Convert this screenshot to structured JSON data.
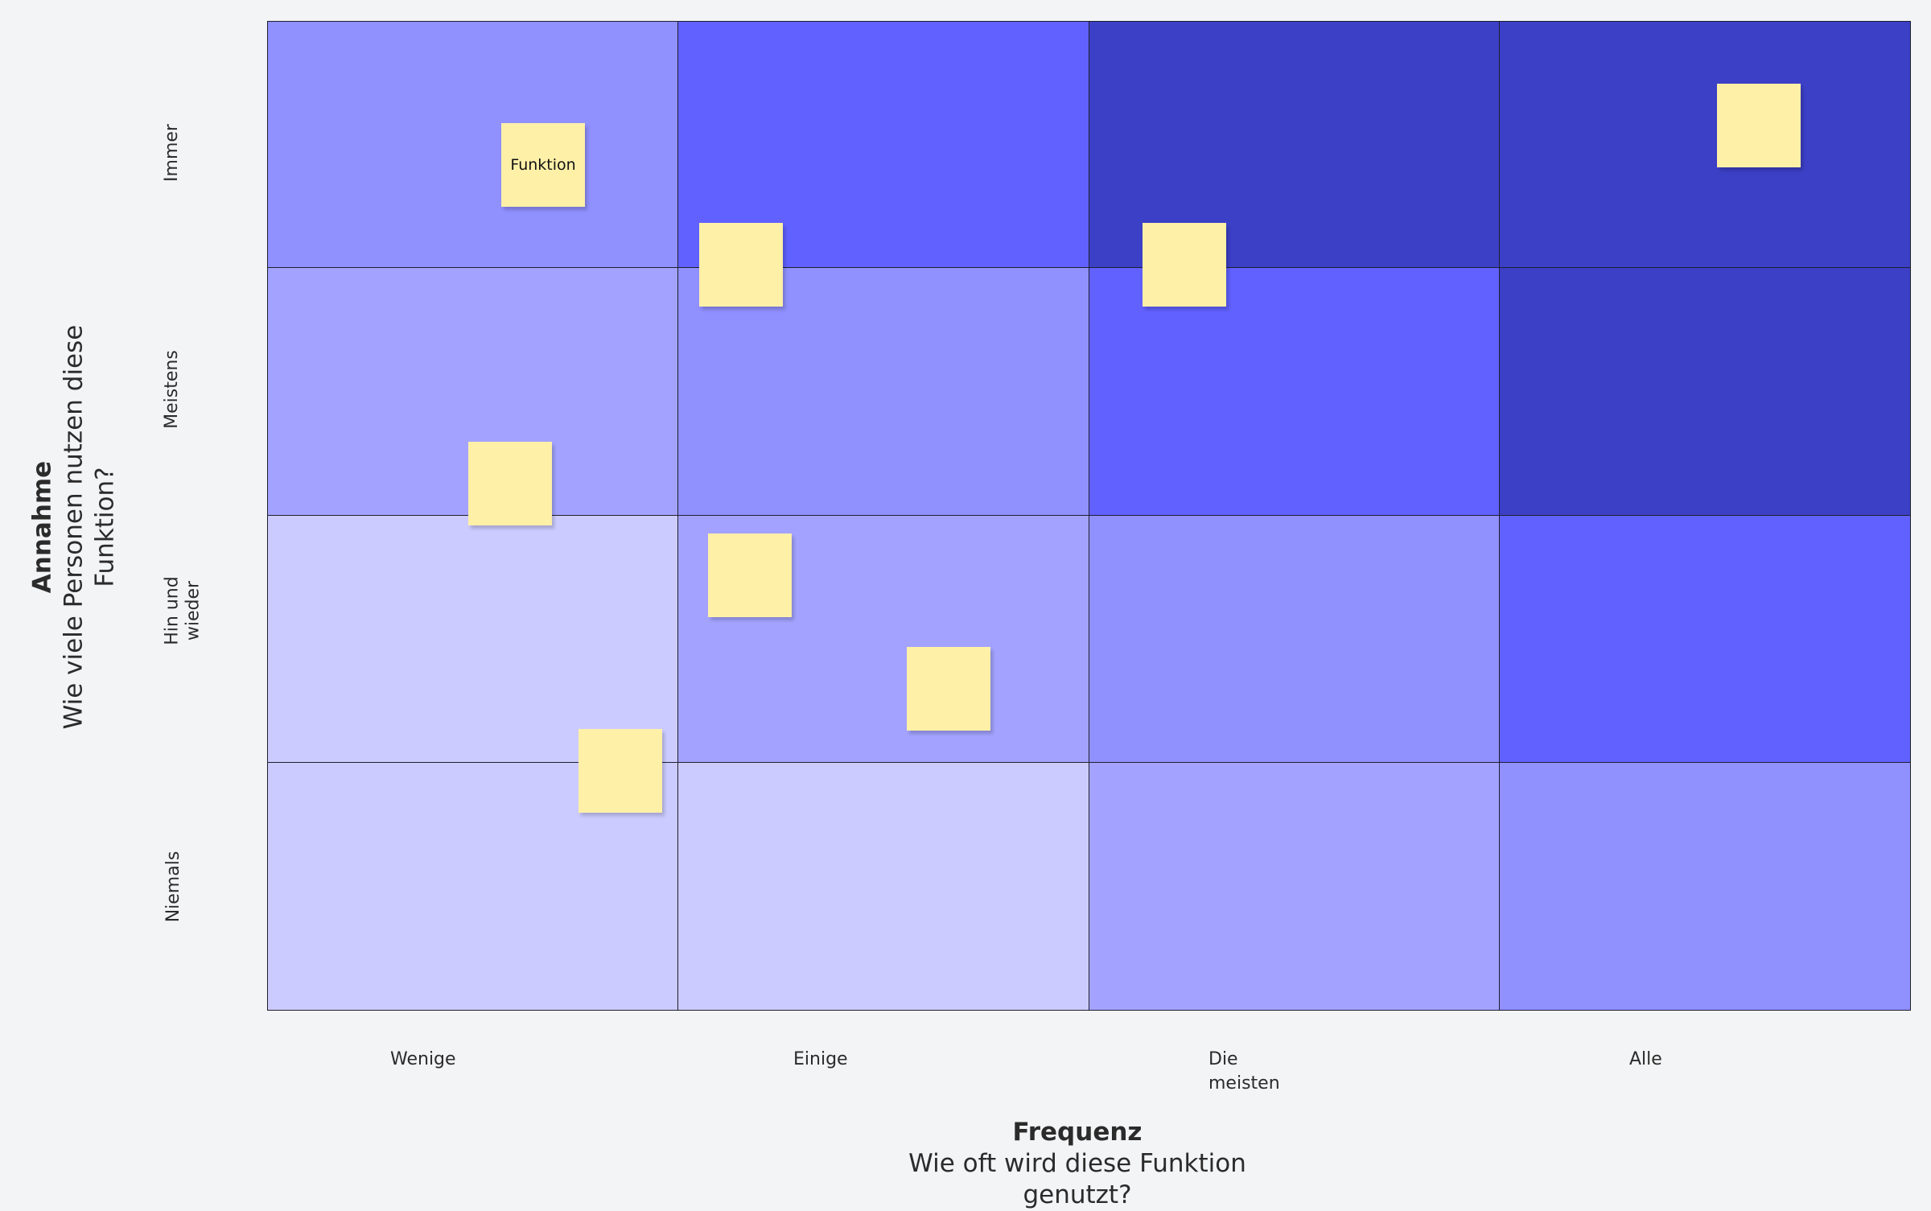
{
  "y_axis": {
    "title": "Annahme",
    "subtitle": "Wie viele Personen nutzen diese Funktion?",
    "labels": [
      "Immer",
      "Meistens",
      "Hin und wieder",
      "Niemals"
    ]
  },
  "x_axis": {
    "title": "Frequenz",
    "subtitle": "Wie oft wird diese Funktion genutzt?",
    "labels": [
      "Wenige",
      "Einige",
      "Die meisten",
      "Alle"
    ]
  },
  "sticky_note": {
    "label": "Funktion"
  }
}
